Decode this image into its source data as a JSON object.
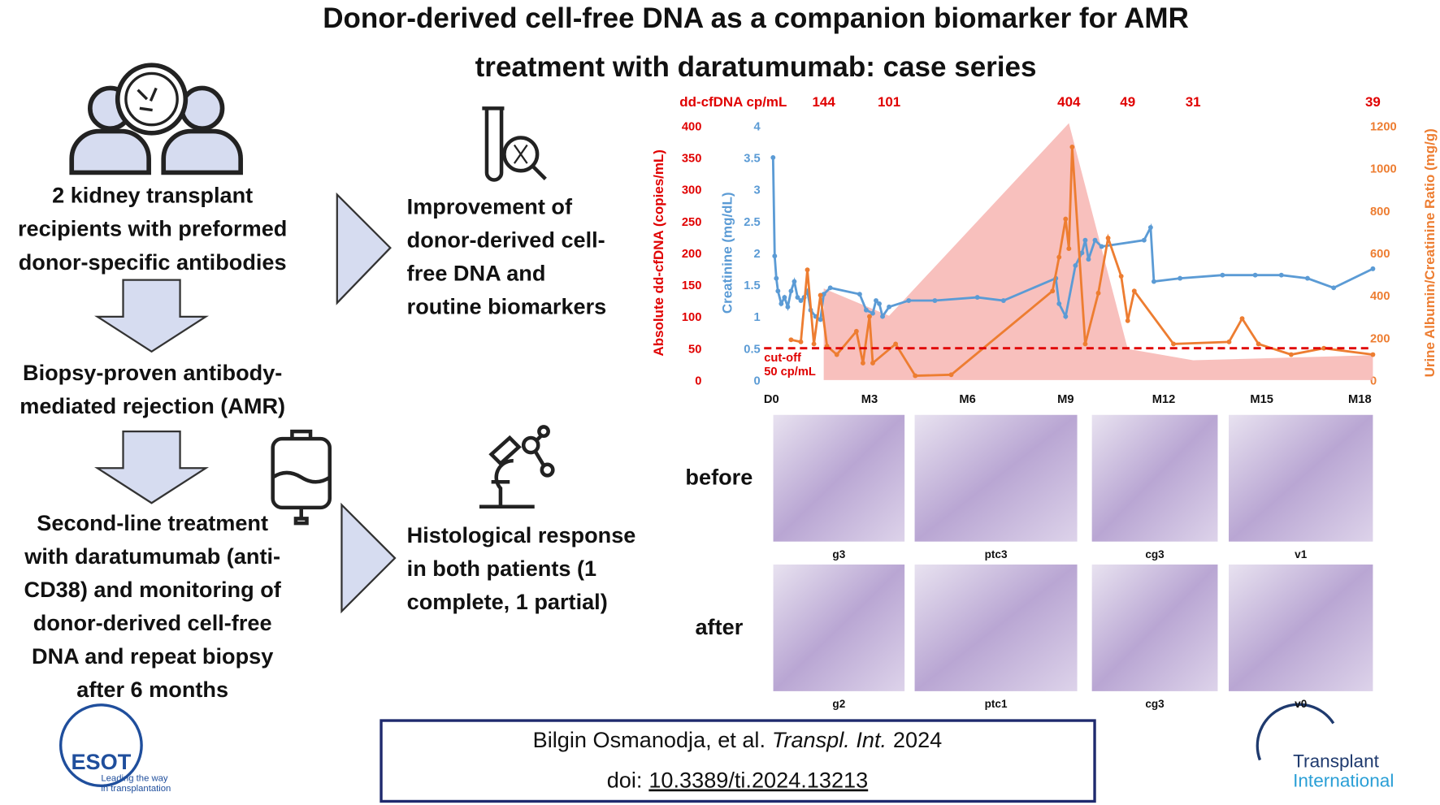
{
  "title": [
    "Donor-derived cell-free DNA as a companion biomarker for AMR",
    "treatment with daratumumab: case series"
  ],
  "left_flow": [
    {
      "lines": [
        "2 kidney transplant",
        "recipients with preformed",
        "donor-specific antibodies"
      ]
    },
    {
      "lines": [
        "Biopsy-proven antibody-",
        "mediated rejection (AMR)"
      ]
    },
    {
      "lines": [
        "Second-line treatment",
        "with daratumumab (anti-",
        "CD38) and monitoring of",
        "donor-derived cell-free",
        "DNA and repeat biopsy",
        "after 6 months"
      ]
    }
  ],
  "outcomes": [
    {
      "lines": [
        "Improvement of",
        "donor-derived cell-",
        "free DNA and",
        "routine biomarkers"
      ]
    },
    {
      "lines": [
        "Histological response",
        "in both patients (1",
        "complete, 1 partial)"
      ]
    }
  ],
  "chart_data": {
    "type": "line",
    "top_label": "dd-cfDNA cp/mL",
    "xlim": [
      0,
      18.4
    ],
    "xticks": [
      {
        "value": 0,
        "label": "D0"
      },
      {
        "value": 3,
        "label": "M3"
      },
      {
        "value": 6,
        "label": "M6"
      },
      {
        "value": 9,
        "label": "M9"
      },
      {
        "value": 12,
        "label": "M12"
      },
      {
        "value": 15,
        "label": "M15"
      },
      {
        "value": 18,
        "label": "M18"
      }
    ],
    "ylim": [
      0,
      400
    ],
    "yticks": [
      0,
      50,
      100,
      150,
      200,
      250,
      300,
      350,
      400
    ],
    "ylabel": "Absolute dd-cfDNA (copies/mL)",
    "y2lim": [
      0,
      4
    ],
    "y2ticks": [
      0,
      0.5,
      1,
      1.5,
      2,
      2.5,
      3,
      3.5,
      4
    ],
    "y2label": "Creatinine (mg/dL)",
    "y3lim": [
      0,
      1200
    ],
    "y3ticks": [
      0,
      200,
      400,
      600,
      800,
      1000,
      1200
    ],
    "y3label": "Urine Albumin/Creatinine Ratio (mg/g)",
    "cutoff": {
      "value": 50,
      "label": [
        "cut-off",
        "50 cp/mL"
      ],
      "color": "#e00000"
    },
    "series": [
      {
        "kind": "area",
        "axis": "y",
        "color": "#f7b5b2",
        "label_color": "#e00000",
        "x": [
          1.6,
          3.6,
          9.1,
          10.9,
          12.9,
          18.4
        ],
        "values": [
          144,
          101,
          404,
          49,
          31,
          39
        ]
      },
      {
        "kind": "line",
        "axis": "y2",
        "color": "#5b9bd5",
        "x": [
          0.05,
          0.1,
          0.15,
          0.2,
          0.3,
          0.4,
          0.5,
          0.6,
          0.7,
          0.8,
          0.9,
          1.0,
          1.1,
          1.2,
          1.35,
          1.5,
          1.6,
          1.8,
          2.7,
          2.9,
          3.1,
          3.2,
          3.3,
          3.4,
          3.6,
          4.2,
          5.0,
          6.3,
          7.1,
          8.7,
          8.8,
          9.0,
          9.3,
          9.5,
          9.6,
          9.7,
          9.9,
          10.1,
          11.4,
          11.6,
          11.7,
          12.5,
          13.8,
          14.8,
          15.6,
          16.4,
          17.2,
          18.4
        ],
        "values": [
          3.5,
          1.95,
          1.6,
          1.4,
          1.2,
          1.3,
          1.15,
          1.4,
          1.55,
          1.3,
          1.25,
          1.3,
          1.4,
          1.1,
          1.0,
          0.95,
          1.35,
          1.45,
          1.35,
          1.1,
          1.05,
          1.25,
          1.2,
          1.0,
          1.15,
          1.25,
          1.25,
          1.3,
          1.25,
          1.6,
          1.2,
          1.0,
          1.8,
          2.0,
          2.2,
          1.9,
          2.2,
          2.1,
          2.2,
          2.4,
          1.55,
          1.6,
          1.65,
          1.65,
          1.65,
          1.6,
          1.45,
          1.75
        ]
      },
      {
        "kind": "line",
        "axis": "y3",
        "color": "#ed7d31",
        "x": [
          0.6,
          0.9,
          1.1,
          1.3,
          1.5,
          1.7,
          2.0,
          2.6,
          2.8,
          3.0,
          3.1,
          3.8,
          4.4,
          5.5,
          8.6,
          8.8,
          9.0,
          9.1,
          9.2,
          9.6,
          10.0,
          10.3,
          10.7,
          10.9,
          11.1,
          12.3,
          14.0,
          14.4,
          14.9,
          15.9,
          16.9,
          18.4
        ],
        "values": [
          190,
          180,
          520,
          170,
          400,
          160,
          120,
          230,
          80,
          300,
          80,
          170,
          20,
          25,
          420,
          580,
          760,
          620,
          1100,
          170,
          410,
          670,
          490,
          280,
          420,
          170,
          180,
          290,
          170,
          120,
          150,
          120
        ]
      }
    ]
  },
  "histology": {
    "rows": [
      {
        "label": "before",
        "panels": [
          "g3",
          "ptc3",
          "cg3",
          "v1"
        ]
      },
      {
        "label": "after",
        "panels": [
          "g2",
          "ptc1",
          "cg3",
          "v0"
        ]
      }
    ]
  },
  "citation": {
    "authors": "Bilgin Osmanodja, et al.",
    "journal": "Transpl. Int.",
    "year": "2024",
    "doi_prefix": "doi:",
    "doi": "10.3389/ti.2024.13213"
  },
  "logos": {
    "esot": {
      "name": "ESOT",
      "tagline": [
        "Leading the way",
        "in transplantation"
      ]
    },
    "journal": [
      "Transplant",
      "International"
    ]
  }
}
